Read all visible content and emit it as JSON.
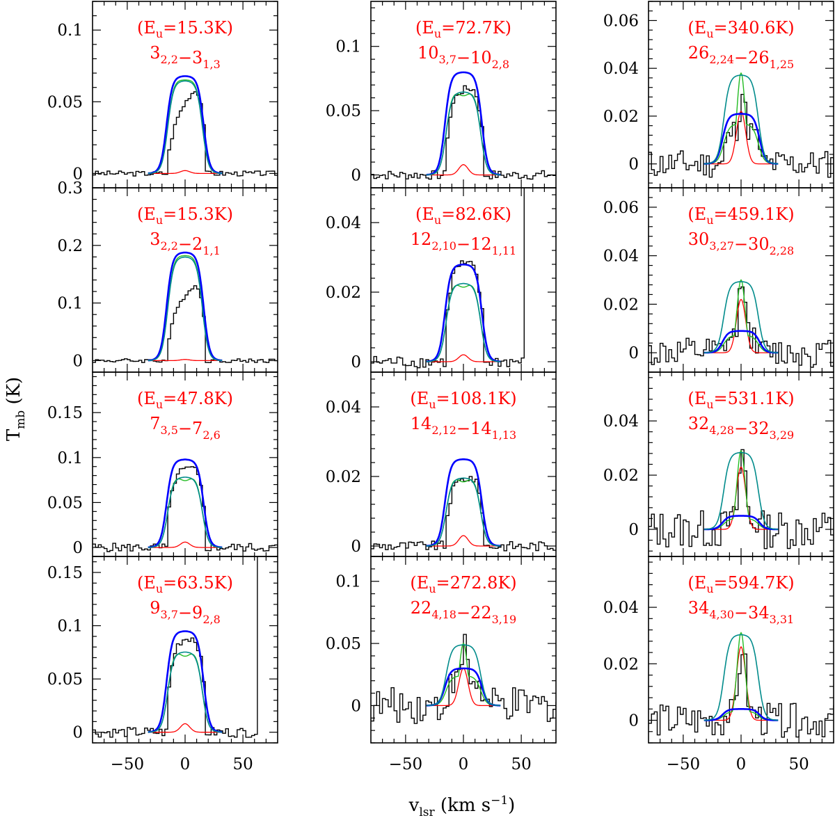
{
  "figure": {
    "ylabel": {
      "main": "T",
      "sub": "mb",
      "rest": " (K)"
    },
    "xlabel": {
      "main": "v",
      "sub": "lsr",
      "rest": " (km s",
      "sup": "−1",
      "close": ")"
    },
    "series_colors": {
      "observed": "#000000",
      "model_total": "#0000ff",
      "model_alt": "#22bb22",
      "model_component": "#ff0000",
      "fit": "#008b8b"
    },
    "label_color": "#ff0000"
  },
  "chart_data": [
    {
      "type": "line",
      "eu": "(E",
      "eu_sub": "u",
      "eu_val": "=15.3K)",
      "tr": [
        [
          "3",
          "2,2"
        ],
        [
          "−3",
          "1,3"
        ]
      ],
      "xlim": [
        -80,
        80
      ],
      "ylim": [
        -0.01,
        0.12
      ],
      "yticks": [
        0,
        0.05,
        0.1
      ],
      "yticklabels": [
        "0",
        "0.05",
        "0.1"
      ],
      "xticklabels": [
        "−50",
        "0",
        "50"
      ],
      "peak_total": 0.068,
      "peak_alt": 0.066,
      "peak_red": 0.002,
      "peak_obs": 0.07,
      "obs_skew": 0.45,
      "width": 15,
      "noise": 0.0015,
      "spike": null
    },
    {
      "type": "line",
      "eu": "(E",
      "eu_sub": "u",
      "eu_val": "=15.3K)",
      "tr": [
        [
          "3",
          "2,2"
        ],
        [
          "−2",
          "1,1"
        ]
      ],
      "xlim": [
        -80,
        80
      ],
      "ylim": [
        -0.02,
        0.3
      ],
      "yticks": [
        0,
        0.1,
        0.2,
        0.3
      ],
      "yticklabels": [
        "0",
        "0.1",
        "0.2",
        "0.3"
      ],
      "xticklabels": [
        "−50",
        "0",
        "50"
      ],
      "peak_total": 0.188,
      "peak_alt": 0.184,
      "peak_red": 0.002,
      "peak_obs": 0.155,
      "obs_skew": 0.5,
      "width": 15,
      "noise": 0.003,
      "spike": null
    },
    {
      "type": "line",
      "eu": "(E",
      "eu_sub": "u",
      "eu_val": "=47.8K)",
      "tr": [
        [
          "7",
          "3,5"
        ],
        [
          "−7",
          "2,6"
        ]
      ],
      "xlim": [
        -80,
        80
      ],
      "ylim": [
        -0.01,
        0.195
      ],
      "yticks": [
        0,
        0.05,
        0.1,
        0.15
      ],
      "yticklabels": [
        "0",
        "0.05",
        "0.1",
        "0.15"
      ],
      "xticklabels": [
        "−50",
        "0",
        "50"
      ],
      "peak_total": 0.098,
      "peak_alt": 0.08,
      "peak_red": 0.006,
      "peak_obs": 0.092,
      "obs_skew": 0.9,
      "width": 15,
      "noise": 0.004,
      "spike": null
    },
    {
      "type": "line",
      "eu": "(E",
      "eu_sub": "u",
      "eu_val": "=63.5K)",
      "tr": [
        [
          "9",
          "3,7"
        ],
        [
          "−9",
          "2,8"
        ]
      ],
      "xlim": [
        -80,
        80
      ],
      "ylim": [
        -0.01,
        0.165
      ],
      "yticks": [
        0,
        0.05,
        0.1,
        0.15
      ],
      "yticklabels": [
        "0",
        "0.05",
        "0.1",
        "0.15"
      ],
      "xticklabels": [
        "−50",
        "0",
        "50"
      ],
      "peak_total": 0.095,
      "peak_alt": 0.077,
      "peak_red": 0.008,
      "peak_obs": 0.093,
      "obs_skew": 0.9,
      "width": 15,
      "noise": 0.004,
      "spike": 62
    },
    {
      "type": "line",
      "eu": "(E",
      "eu_sub": "u",
      "eu_val": "=72.7K)",
      "tr": [
        [
          "10",
          "3,7"
        ],
        [
          "−10",
          "2,8"
        ]
      ],
      "xlim": [
        -80,
        80
      ],
      "ylim": [
        -0.01,
        0.135
      ],
      "yticks": [
        0,
        0.05,
        0.1
      ],
      "yticklabels": [
        "0",
        "0.05",
        "0.1"
      ],
      "xticklabels": [
        "−50",
        "0",
        "50"
      ],
      "peak_total": 0.08,
      "peak_alt": 0.066,
      "peak_red": 0.008,
      "peak_obs": 0.072,
      "obs_skew": 0.85,
      "width": 15,
      "noise": 0.003,
      "spike": null
    },
    {
      "type": "line",
      "eu": "(E",
      "eu_sub": "u",
      "eu_val": "=82.6K)",
      "tr": [
        [
          "12",
          "2,10"
        ],
        [
          "−12",
          "1,11"
        ]
      ],
      "xlim": [
        -80,
        80
      ],
      "ylim": [
        -0.003,
        0.05
      ],
      "yticks": [
        0,
        0.02,
        0.04
      ],
      "yticklabels": [
        "0",
        "0.02",
        "0.04"
      ],
      "xticklabels": [
        "−50",
        "0",
        "50"
      ],
      "peak_total": 0.028,
      "peak_alt": 0.023,
      "peak_red": 0.002,
      "peak_obs": 0.028,
      "obs_skew": 1.0,
      "width": 15,
      "noise": 0.0015,
      "spike": 52
    },
    {
      "type": "line",
      "eu": "(E",
      "eu_sub": "u",
      "eu_val": "=108.1K)",
      "tr": [
        [
          "14",
          "2,12"
        ],
        [
          "−14",
          "1,13"
        ]
      ],
      "xlim": [
        -80,
        80
      ],
      "ylim": [
        -0.003,
        0.05
      ],
      "yticks": [
        0,
        0.02,
        0.04
      ],
      "yticklabels": [
        "0",
        "0.02",
        "0.04"
      ],
      "xticklabels": [
        "−50",
        "0",
        "50"
      ],
      "peak_total": 0.025,
      "peak_alt": 0.02,
      "peak_red": 0.003,
      "peak_obs": 0.021,
      "obs_skew": 0.85,
      "width": 15,
      "noise": 0.0012,
      "spike": null
    },
    {
      "type": "line",
      "eu": "(E",
      "eu_sub": "u",
      "eu_val": "=272.8K)",
      "tr": [
        [
          "22",
          "4,18"
        ],
        [
          "−22",
          "3,19"
        ]
      ],
      "xlim": [
        -80,
        80
      ],
      "ylim": [
        -0.03,
        0.12
      ],
      "yticks": [
        0,
        0.05,
        0.1
      ],
      "yticklabels": [
        "0",
        "0.05",
        "0.1"
      ],
      "xticklabels": [
        "−50",
        "0",
        "50"
      ],
      "peak_total": 0.03,
      "peak_alt": 0.05,
      "peak_red": 0.03,
      "peak_obs": 0.05,
      "obs_skew": 1.0,
      "width": 15,
      "noise": 0.012,
      "spike": null
    },
    {
      "type": "line",
      "eu": "(E",
      "eu_sub": "u",
      "eu_val": "=340.6K)",
      "tr": [
        [
          "26",
          "2,24"
        ],
        [
          "−26",
          "1,25"
        ]
      ],
      "xlim": [
        -80,
        80
      ],
      "ylim": [
        -0.01,
        0.068
      ],
      "yticks": [
        0,
        0.02,
        0.04,
        0.06
      ],
      "yticklabels": [
        "0",
        "0.02",
        "0.04",
        "0.06"
      ],
      "xticklabels": [
        "−50",
        "0",
        "50"
      ],
      "peak_total": 0.021,
      "peak_alt": 0.038,
      "peak_red": 0.022,
      "peak_obs": 0.03,
      "obs_skew": 1.0,
      "width": 15,
      "noise": 0.005,
      "spike": null
    },
    {
      "type": "line",
      "eu": "(E",
      "eu_sub": "u",
      "eu_val": "=459.1K)",
      "tr": [
        [
          "30",
          "3,27"
        ],
        [
          "−30",
          "2,28"
        ]
      ],
      "xlim": [
        -80,
        80
      ],
      "ylim": [
        -0.008,
        0.068
      ],
      "yticks": [
        0,
        0.02,
        0.04,
        0.06
      ],
      "yticklabels": [
        "0",
        "0.02",
        "0.04",
        "0.06"
      ],
      "xticklabels": [
        "−50",
        "0",
        "50"
      ],
      "peak_total": 0.009,
      "peak_alt": 0.03,
      "peak_red": 0.022,
      "peak_obs": 0.032,
      "obs_skew": 1.0,
      "width": 15,
      "noise": 0.005,
      "spike": null
    },
    {
      "type": "line",
      "eu": "(E",
      "eu_sub": "u",
      "eu_val": "=531.1K)",
      "tr": [
        [
          "32",
          "4,28"
        ],
        [
          "−32",
          "3,29"
        ]
      ],
      "xlim": [
        -80,
        80
      ],
      "ylim": [
        -0.01,
        0.058
      ],
      "yticks": [
        0,
        0.02,
        0.04
      ],
      "yticklabels": [
        "0",
        "0.02",
        "0.04"
      ],
      "xticklabels": [
        "−50",
        "0",
        "50"
      ],
      "peak_total": 0.005,
      "peak_alt": 0.029,
      "peak_red": 0.023,
      "peak_obs": 0.028,
      "obs_skew": 1.0,
      "width": 15,
      "noise": 0.006,
      "spike": null
    },
    {
      "type": "line",
      "eu": "(E",
      "eu_sub": "u",
      "eu_val": "=594.7K)",
      "tr": [
        [
          "34",
          "4,30"
        ],
        [
          "−34",
          "3,31"
        ]
      ],
      "xlim": [
        -80,
        80
      ],
      "ylim": [
        -0.008,
        0.058
      ],
      "yticks": [
        0,
        0.02,
        0.04
      ],
      "yticklabels": [
        "0",
        "0.02",
        "0.04"
      ],
      "xticklabels": [
        "−50",
        "0",
        "50"
      ],
      "peak_total": 0.004,
      "peak_alt": 0.031,
      "peak_red": 0.026,
      "peak_obs": 0.026,
      "obs_skew": 1.0,
      "width": 15,
      "noise": 0.005,
      "spike": null
    }
  ]
}
